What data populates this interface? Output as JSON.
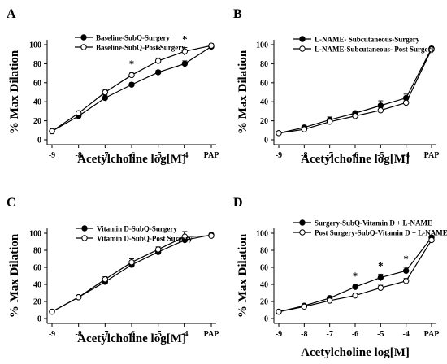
{
  "chart_data": [
    {
      "panel_label": "A",
      "type": "line",
      "ylabel": "% Max Dilation",
      "xlabel": "Acetylcholine log[M]",
      "categories": [
        "-9",
        "-8",
        "-7",
        "-6",
        "-5",
        "-4",
        "PAP"
      ],
      "ylim": [
        0,
        100
      ],
      "yticks": [
        "0",
        "20",
        "40",
        "60",
        "80",
        "100"
      ],
      "legend_position": "top-left",
      "significance_marks": [
        {
          "category": "-6",
          "text": "*"
        },
        {
          "category": "-5",
          "text": "*"
        },
        {
          "category": "-4",
          "text": "*"
        }
      ],
      "series": [
        {
          "name": "Baseline-SubQ-Surgery",
          "marker": "filled",
          "values": [
            9,
            25,
            44,
            58,
            71,
            80,
            98
          ],
          "errors": [
            0,
            2,
            3,
            2,
            2,
            3,
            2
          ]
        },
        {
          "name": "Baseline-SubQ-Post Surgery",
          "marker": "open",
          "values": [
            9,
            28,
            50,
            68,
            83,
            93,
            99
          ],
          "errors": [
            0,
            2,
            3,
            3,
            3,
            4,
            2
          ]
        }
      ]
    },
    {
      "panel_label": "B",
      "type": "line",
      "ylabel": "% Max Dilation",
      "xlabel": "Acetylcholine log[M]",
      "categories": [
        "-9",
        "-8",
        "-7",
        "-6",
        "-5",
        "-4",
        "PAP"
      ],
      "ylim": [
        0,
        100
      ],
      "yticks": [
        "0",
        "20",
        "40",
        "60",
        "80",
        "100"
      ],
      "legend_position": "top-left",
      "significance_marks": [],
      "series": [
        {
          "name": "L-NAME- Subcutaneous-Surgery",
          "marker": "filled",
          "values": [
            7,
            13,
            21,
            28,
            36,
            44,
            96
          ],
          "errors": [
            1,
            2,
            3,
            2,
            5,
            4,
            2
          ]
        },
        {
          "name": "L-NAME-Subcutaneous- Post Surgery",
          "marker": "open",
          "values": [
            7,
            11,
            19,
            25,
            31,
            39,
            95
          ],
          "errors": [
            1,
            2,
            2,
            2,
            3,
            3,
            2
          ]
        }
      ]
    },
    {
      "panel_label": "C",
      "type": "line",
      "ylabel": "% Max Dilation",
      "xlabel": "Acetylcholine log[M]",
      "categories": [
        "-9",
        "-8",
        "-7",
        "-6",
        "-5",
        "-4",
        "PAP"
      ],
      "ylim": [
        0,
        100
      ],
      "yticks": [
        "0",
        "20",
        "40",
        "60",
        "80",
        "100"
      ],
      "legend_position": "top-left",
      "significance_marks": [],
      "series": [
        {
          "name": "Vitamin D-SubQ-Surgery",
          "marker": "filled",
          "values": [
            8,
            25,
            43,
            63,
            78,
            92,
            98
          ],
          "errors": [
            0,
            1,
            3,
            3,
            3,
            3,
            2
          ]
        },
        {
          "name": "Vitamin D-SubQ-Post Surgery",
          "marker": "open",
          "values": [
            8,
            25,
            46,
            66,
            81,
            96,
            97
          ],
          "errors": [
            0,
            1,
            3,
            4,
            3,
            6,
            3
          ]
        }
      ]
    },
    {
      "panel_label": "D",
      "type": "line",
      "ylabel": "% Max Dilation",
      "xlabel": "Acetylcholine log[M]",
      "categories": [
        "-9",
        "-8",
        "-7",
        "-6",
        "-5",
        "-4",
        "PAP"
      ],
      "ylim": [
        0,
        100
      ],
      "yticks": [
        "0",
        "20",
        "40",
        "60",
        "80",
        "100"
      ],
      "legend_position": "top-left",
      "significance_marks": [
        {
          "category": "-6",
          "text": "*"
        },
        {
          "category": "-5",
          "text": "*"
        },
        {
          "category": "-4",
          "text": "*"
        }
      ],
      "series": [
        {
          "name": "Surgery-SubQ-Vitamin D + L-NAME",
          "marker": "filled",
          "values": [
            8,
            15,
            24,
            37,
            48,
            56,
            95
          ],
          "errors": [
            1,
            1,
            2,
            3,
            4,
            4,
            2
          ]
        },
        {
          "name": "Post Surgery-SubQ-Vitamin D + L-NAME",
          "marker": "open",
          "values": [
            8,
            14,
            21,
            27,
            36,
            44,
            92
          ],
          "errors": [
            1,
            1,
            2,
            3,
            3,
            3,
            2
          ]
        }
      ]
    }
  ]
}
